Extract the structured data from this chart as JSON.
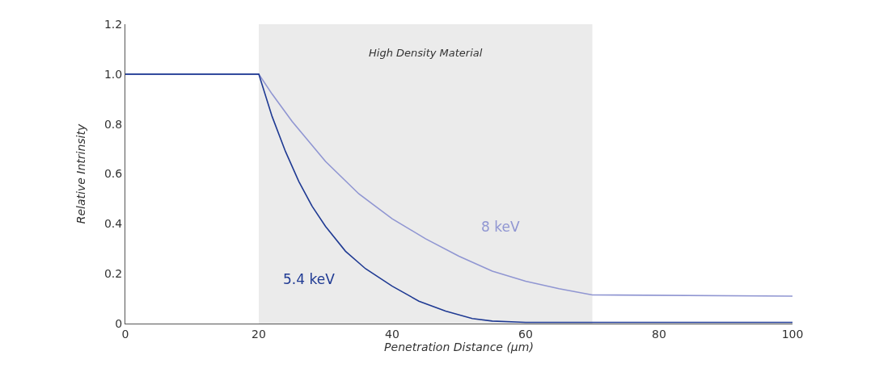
{
  "chart_data": {
    "type": "line",
    "xlabel": "Penetration Distance (µm)",
    "ylabel": "Relative Intrinsity",
    "xlim": [
      0,
      100
    ],
    "ylim": [
      0,
      1.2
    ],
    "xticks": [
      0,
      20,
      40,
      60,
      80,
      100
    ],
    "yticks": [
      0,
      0.2,
      0.4,
      0.6,
      0.8,
      {
        "value": 1.0,
        "label": "1.0"
      },
      1.2
    ],
    "grid": false,
    "legend": false,
    "marker": "none",
    "line_style": "solid",
    "bands": [
      {
        "axis": "x",
        "from": 20,
        "to": 70,
        "label": "High Density Material",
        "color": "#ebebeb"
      }
    ],
    "series": [
      {
        "name": "8 keV",
        "color": "#9096d2",
        "x": [
          0,
          20,
          22,
          25,
          30,
          35,
          40,
          45,
          50,
          55,
          60,
          65,
          70,
          100
        ],
        "values": [
          1.0,
          1.0,
          0.92,
          0.81,
          0.65,
          0.52,
          0.42,
          0.34,
          0.27,
          0.21,
          0.17,
          0.14,
          0.115,
          0.11
        ]
      },
      {
        "name": "5.4 keV",
        "color": "#1f3a93",
        "x": [
          0,
          20,
          22,
          24,
          26,
          28,
          30,
          33,
          36,
          40,
          44,
          48,
          52,
          55,
          60,
          100
        ],
        "values": [
          1.0,
          1.0,
          0.83,
          0.69,
          0.57,
          0.47,
          0.39,
          0.29,
          0.22,
          0.15,
          0.09,
          0.05,
          0.02,
          0.01,
          0.005,
          0.005
        ]
      }
    ]
  }
}
